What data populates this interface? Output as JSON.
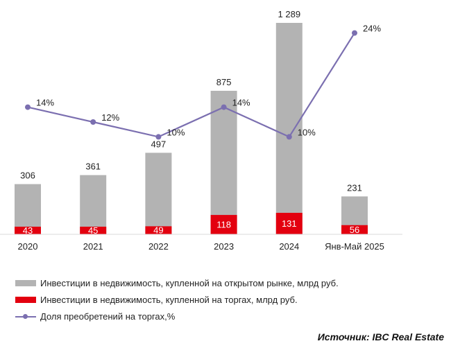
{
  "chart_data": {
    "type": "bar",
    "categories": [
      "2020",
      "2021",
      "2022",
      "2023",
      "2024",
      "Янв-Май 2025"
    ],
    "series": [
      {
        "name": "Инвестиции в недвижимость, купленной на открытом рынке, млрд руб.",
        "kind": "bar-total",
        "values": [
          306,
          361,
          497,
          875,
          1289,
          231
        ],
        "labels": [
          "306",
          "361",
          "497",
          "875",
          "1 289",
          "231"
        ],
        "color": "#b3b3b3"
      },
      {
        "name": "Инвестиции в недвижимость, купленной на торгах, млрд руб.",
        "kind": "bar-segment",
        "values": [
          43,
          45,
          49,
          118,
          131,
          56
        ],
        "labels": [
          "43",
          "45",
          "49",
          "118",
          "131",
          "56"
        ],
        "color": "#e3000f"
      },
      {
        "name": "Доля преобретений на торгах,%",
        "kind": "line",
        "values": [
          14,
          12,
          10,
          14,
          10,
          24
        ],
        "labels": [
          "14%",
          "12%",
          "10%",
          "14%",
          "10%",
          "24%"
        ],
        "color": "#7b6fb0"
      }
    ],
    "legend_position": "bottom",
    "grid": false
  },
  "source": "Источник: IBC Real Estate"
}
